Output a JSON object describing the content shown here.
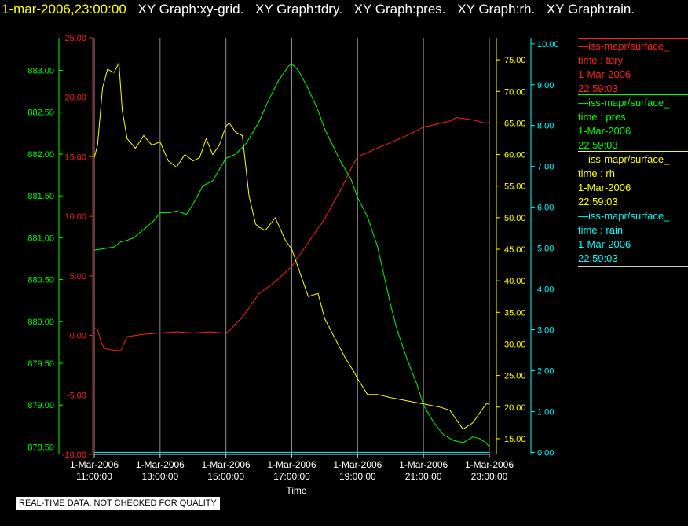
{
  "title_bar": {
    "timestamp": "1-mar-2006,23:00:00",
    "graphs": [
      "XY Graph:xy-grid.",
      "XY Graph:tdry.",
      "XY Graph:pres.",
      "XY Graph:rh.",
      "XY Graph:rain."
    ]
  },
  "legend": [
    {
      "name": "—iss-mapr/surface_",
      "field": "time : tdry",
      "date": "1-Mar-2006",
      "time": "22:59:03",
      "color": "#ff2020"
    },
    {
      "name": "—iss-mapr/surface_",
      "field": "time : pres",
      "date": "1-Mar-2006",
      "time": "22:59:03",
      "color": "#00ff00"
    },
    {
      "name": "—iss-mapr/surface_",
      "field": "time : rh",
      "date": "1-Mar-2006",
      "time": "22:59:03",
      "color": "#ffff00"
    },
    {
      "name": "—iss-mapr/surface_",
      "field": "time : rain",
      "date": "1-Mar-2006",
      "time": "22:59:03",
      "color": "#00ffff"
    }
  ],
  "quality_note": "REAL-TIME DATA, NOT CHECKED FOR QUALITY",
  "chart_data": {
    "type": "line",
    "xlabel": "Time",
    "x_ticks": [
      {
        "date": "1-Mar-2006",
        "time": "11:00:00",
        "hour": 11
      },
      {
        "date": "1-Mar-2006",
        "time": "13:00:00",
        "hour": 13
      },
      {
        "date": "1-Mar-2006",
        "time": "15:00:00",
        "hour": 15
      },
      {
        "date": "1-Mar-2006",
        "time": "17:00:00",
        "hour": 17
      },
      {
        "date": "1-Mar-2006",
        "time": "19:00:00",
        "hour": 19
      },
      {
        "date": "1-Mar-2006",
        "time": "21:00:00",
        "hour": 21
      },
      {
        "date": "1-Mar-2006",
        "time": "23:00:00",
        "hour": 23
      }
    ],
    "xlim": [
      11,
      23
    ],
    "grid": true,
    "axes": {
      "tdry": {
        "color": "#ff2020",
        "ylim": [
          -10,
          25
        ],
        "ticks": [
          "-10.00",
          "-5.00",
          "0.00",
          "5.00",
          "10.00",
          "15.00",
          "20.00",
          "25.00"
        ]
      },
      "pres": {
        "color": "#00ff00",
        "ylim": [
          878.41,
          883.39
        ],
        "ticks": [
          "878.50",
          "879.00",
          "879.50",
          "880.00",
          "880.50",
          "881.00",
          "881.50",
          "882.00",
          "882.50",
          "883.00"
        ]
      },
      "rh": {
        "color": "#ffff00",
        "ylim": [
          12.5,
          78.5
        ],
        "ticks": [
          "15.00",
          "20.00",
          "25.00",
          "30.00",
          "35.00",
          "40.00",
          "45.00",
          "50.00",
          "55.00",
          "60.00",
          "65.00",
          "70.00",
          "75.00"
        ]
      },
      "rain": {
        "color": "#00ffff",
        "ylim": [
          -0.05,
          10.15
        ],
        "ticks": [
          "0.00",
          "1.00",
          "2.00",
          "3.00",
          "4.00",
          "5.00",
          "6.00",
          "7.00",
          "8.00",
          "9.00",
          "10.00"
        ]
      }
    },
    "series": [
      {
        "name": "tdry",
        "axis": "tdry",
        "x": [
          11.0,
          11.1,
          11.2,
          11.3,
          11.5,
          11.8,
          12.0,
          12.5,
          13.0,
          13.5,
          14.0,
          14.5,
          14.9,
          15.0,
          15.15,
          15.3,
          15.5,
          16.0,
          16.5,
          17.0,
          17.5,
          18.0,
          18.5,
          18.8,
          19.0,
          19.5,
          20.0,
          20.5,
          20.8,
          21.0,
          21.5,
          21.8,
          22.0,
          22.5,
          22.9,
          23.0
        ],
        "y": [
          0.6,
          0.5,
          -0.5,
          -1.1,
          -1.2,
          -1.3,
          -0.1,
          0.1,
          0.2,
          0.3,
          0.2,
          0.3,
          0.2,
          0.2,
          0.5,
          1.0,
          1.5,
          3.5,
          4.5,
          5.8,
          7.8,
          9.8,
          12.3,
          14.0,
          15.0,
          15.6,
          16.2,
          16.8,
          17.2,
          17.5,
          17.8,
          18.0,
          18.3,
          18.1,
          17.8,
          17.9
        ]
      },
      {
        "name": "pres",
        "axis": "pres",
        "x": [
          11.0,
          11.3,
          11.6,
          11.8,
          12.0,
          12.2,
          12.5,
          12.8,
          13.0,
          13.3,
          13.5,
          13.8,
          14.0,
          14.3,
          14.6,
          15.0,
          15.3,
          15.6,
          16.0,
          16.3,
          16.6,
          16.9,
          17.0,
          17.2,
          17.5,
          17.8,
          18.0,
          18.5,
          18.8,
          19.0,
          19.3,
          19.6,
          19.8,
          20.0,
          20.2,
          20.5,
          20.8,
          21.0,
          21.3,
          21.6,
          21.9,
          22.2,
          22.5,
          22.7,
          22.9,
          23.0
        ],
        "y": [
          880.85,
          880.87,
          880.89,
          880.95,
          880.97,
          881.0,
          881.1,
          881.2,
          881.3,
          881.3,
          881.32,
          881.28,
          881.4,
          881.62,
          881.68,
          881.95,
          882.0,
          882.12,
          882.38,
          882.65,
          882.88,
          883.05,
          883.08,
          883.0,
          882.78,
          882.52,
          882.3,
          881.9,
          881.7,
          881.48,
          881.25,
          880.9,
          880.55,
          880.2,
          879.9,
          879.55,
          879.25,
          879.0,
          878.8,
          878.65,
          878.58,
          878.55,
          878.62,
          878.6,
          878.55,
          878.5
        ]
      },
      {
        "name": "rh",
        "axis": "rh",
        "x": [
          11.0,
          11.1,
          11.25,
          11.4,
          11.6,
          11.75,
          11.85,
          12.0,
          12.25,
          12.5,
          12.75,
          13.0,
          13.25,
          13.5,
          13.75,
          14.0,
          14.2,
          14.4,
          14.6,
          14.8,
          15.0,
          15.1,
          15.3,
          15.5,
          15.7,
          15.9,
          16.0,
          16.2,
          16.5,
          16.8,
          17.0,
          17.2,
          17.5,
          17.8,
          18.0,
          18.3,
          18.6,
          18.9,
          19.0,
          19.3,
          19.6,
          20.0,
          20.5,
          21.0,
          21.5,
          21.8,
          22.0,
          22.2,
          22.5,
          22.7,
          22.9,
          23.0
        ],
        "y": [
          59.5,
          61.5,
          70.5,
          73.5,
          73.0,
          74.5,
          67.0,
          62.5,
          61.0,
          63.0,
          61.5,
          62.0,
          59.0,
          58.0,
          60.0,
          59.0,
          59.5,
          62.5,
          60.0,
          61.5,
          64.5,
          65.0,
          63.5,
          63.0,
          53.5,
          49.0,
          48.5,
          48.0,
          50.0,
          46.5,
          45.0,
          42.0,
          37.5,
          38.0,
          34.0,
          31.0,
          28.0,
          25.5,
          24.5,
          22.0,
          22.0,
          21.5,
          21.0,
          20.5,
          20.0,
          19.5,
          18.0,
          16.5,
          17.5,
          19.0,
          20.5,
          20.5
        ]
      },
      {
        "name": "rain",
        "axis": "rain",
        "x": [
          11,
          23
        ],
        "y": [
          0,
          0
        ]
      }
    ]
  }
}
